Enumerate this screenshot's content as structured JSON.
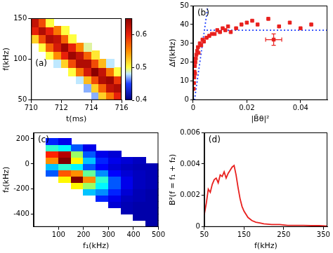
{
  "chart_data": [
    {
      "type": "heatmap",
      "annotation": "(a)",
      "x_label": "t(ms)",
      "y_label": "f(kHz)",
      "x": [
        710.25,
        710.75,
        711.25,
        711.75,
        712.25,
        712.75,
        713.25,
        713.75,
        714.25,
        714.75,
        715.25,
        715.75
      ],
      "y": [
        55,
        65,
        75,
        85,
        95,
        105,
        115,
        125,
        135,
        145
      ],
      "z": [
        [
          null,
          null,
          null,
          null,
          null,
          null,
          null,
          null,
          0.47,
          0.52,
          0.56,
          0.6
        ],
        [
          null,
          null,
          null,
          null,
          null,
          null,
          null,
          0.47,
          0.52,
          0.57,
          0.62,
          0.63
        ],
        [
          null,
          null,
          null,
          null,
          null,
          null,
          0.48,
          0.53,
          0.58,
          0.63,
          0.64,
          0.59
        ],
        [
          null,
          null,
          null,
          null,
          null,
          0.5,
          0.56,
          0.61,
          0.65,
          0.62,
          0.56,
          0.5
        ],
        [
          null,
          null,
          null,
          0.48,
          0.52,
          0.58,
          0.63,
          0.63,
          0.58,
          0.53,
          0.48,
          null
        ],
        [
          null,
          null,
          0.5,
          0.55,
          0.6,
          0.64,
          0.62,
          0.57,
          0.51,
          null,
          null,
          null
        ],
        [
          null,
          0.5,
          0.57,
          0.61,
          0.64,
          0.6,
          0.55,
          0.49,
          null,
          null,
          null,
          null
        ],
        [
          0.52,
          0.58,
          0.63,
          0.62,
          0.57,
          0.5,
          null,
          null,
          null,
          null,
          null,
          null
        ],
        [
          0.6,
          0.63,
          0.6,
          0.56,
          0.5,
          null,
          null,
          null,
          null,
          null,
          null,
          null
        ],
        [
          0.62,
          0.58,
          0.5,
          null,
          null,
          null,
          null,
          null,
          null,
          null,
          null,
          null
        ]
      ],
      "xlim": [
        710,
        716
      ],
      "xticks": [
        710,
        712,
        714,
        716
      ],
      "ylim": [
        50,
        150
      ],
      "yticks": [
        50,
        100,
        150
      ],
      "colorbar_range": [
        0.4,
        0.65
      ],
      "colorbar_ticks": [
        0.4,
        0.5,
        0.6
      ],
      "grid": false
    },
    {
      "type": "scatter",
      "annotation": "(b)",
      "x_label": "|B̃θ|²",
      "y_label": "Δf(kHz)",
      "series": [
        {
          "color": "#e8201e",
          "marker": "square",
          "x": [
            0.0002,
            0.0003,
            0.0004,
            0.0005,
            0.0006,
            0.0007,
            0.0008,
            0.001,
            0.0012,
            0.0015,
            0.0018,
            0.002,
            0.0025,
            0.003,
            0.0035,
            0.004,
            0.005,
            0.006,
            0.007,
            0.008,
            0.009,
            0.01,
            0.011,
            0.012,
            0.013,
            0.014,
            0.016,
            0.018,
            0.02,
            0.022,
            0.024,
            0.028,
            0.032,
            0.036,
            0.04,
            0.044
          ],
          "values": [
            6,
            9,
            12,
            15,
            18,
            14,
            20,
            22,
            24,
            26,
            28,
            25,
            30,
            29,
            32,
            31,
            33,
            34,
            35,
            35,
            37,
            36,
            38,
            37,
            39,
            36,
            38,
            40,
            41,
            42,
            40,
            43,
            39,
            41,
            38,
            40
          ]
        },
        {
          "color": "#e8201e",
          "marker": "square",
          "x": [
            0.03
          ],
          "values": [
            32
          ],
          "x_errors": [
            0.003
          ],
          "y_errors": [
            3
          ]
        },
        {
          "type": "line",
          "color": "#1f3fff",
          "line_style": "dotted",
          "x": [
            0.0005,
            0.0055
          ],
          "values": [
            0,
            50
          ]
        },
        {
          "type": "line",
          "color": "#1f3fff",
          "line_style": "dotted",
          "x": [
            0.005,
            0.05
          ],
          "values": [
            37,
            37
          ]
        }
      ],
      "xlim": [
        0,
        0.05
      ],
      "xticks": [
        0,
        0.02,
        0.04
      ],
      "ylim": [
        0,
        50
      ],
      "yticks": [
        0,
        10,
        20,
        30,
        40,
        50
      ],
      "grid": false
    },
    {
      "type": "heatmap",
      "annotation": "(c)",
      "x_label": "f₁(kHz)",
      "y_label": "f₂(kHz)",
      "x": [
        75,
        125,
        175,
        225,
        275,
        325,
        375,
        425,
        475
      ],
      "y": [
        -475,
        -425,
        -375,
        -325,
        -275,
        -225,
        -175,
        -125,
        -75,
        -25,
        25,
        75,
        125,
        175,
        225
      ],
      "z": [
        [
          null,
          null,
          null,
          null,
          null,
          null,
          null,
          null,
          0.04
        ],
        [
          null,
          null,
          null,
          null,
          null,
          null,
          null,
          0.04,
          0.04
        ],
        [
          null,
          null,
          null,
          null,
          null,
          null,
          0.05,
          0.04,
          0.04
        ],
        [
          null,
          null,
          null,
          null,
          null,
          0.08,
          0.05,
          0.04,
          0.04
        ],
        [
          null,
          null,
          null,
          null,
          0.15,
          0.1,
          0.06,
          0.05,
          0.04
        ],
        [
          null,
          null,
          null,
          0.3,
          0.25,
          0.15,
          0.08,
          0.05,
          0.04
        ],
        [
          null,
          null,
          0.6,
          0.5,
          0.35,
          0.2,
          0.1,
          0.06,
          0.05
        ],
        [
          null,
          0.6,
          0.95,
          0.7,
          0.4,
          0.2,
          0.1,
          0.06,
          0.05
        ],
        [
          0.2,
          0.75,
          0.7,
          0.45,
          0.25,
          0.12,
          0.08,
          0.06,
          0.05
        ],
        [
          0.3,
          0.4,
          0.35,
          0.2,
          0.12,
          0.08,
          0.06,
          0.05,
          0.05
        ],
        [
          0.7,
          0.95,
          0.6,
          0.3,
          0.15,
          0.1,
          0.08,
          0.06,
          null
        ],
        [
          0.8,
          0.9,
          0.5,
          0.2,
          0.1,
          0.08,
          null,
          null,
          null
        ],
        [
          0.4,
          0.35,
          0.2,
          0.1,
          null,
          null,
          null,
          null,
          null
        ],
        [
          0.15,
          0.1,
          null,
          null,
          null,
          null,
          null,
          null,
          null
        ],
        [
          null,
          null,
          null,
          null,
          null,
          null,
          null,
          null,
          null
        ]
      ],
      "xlim": [
        0,
        500
      ],
      "xticks": [
        100,
        200,
        300,
        400,
        500
      ],
      "ylim": [
        -500,
        250
      ],
      "yticks": [
        -400,
        -200,
        0,
        200
      ],
      "grid": false
    },
    {
      "type": "line",
      "annotation": "(d)",
      "x_label": "f(kHz)",
      "y_label": "B²(f = f₁ + f₂)",
      "color": "#e8201e",
      "x": [
        50,
        55,
        60,
        65,
        70,
        75,
        80,
        85,
        90,
        95,
        100,
        105,
        110,
        115,
        120,
        125,
        130,
        135,
        140,
        145,
        150,
        160,
        170,
        180,
        190,
        200,
        220,
        240,
        260,
        280,
        300,
        320,
        340,
        360
      ],
      "values": [
        0.0008,
        0.0015,
        0.0024,
        0.0022,
        0.0027,
        0.003,
        0.0031,
        0.0028,
        0.0033,
        0.0032,
        0.0035,
        0.0031,
        0.0034,
        0.0036,
        0.0038,
        0.0039,
        0.0033,
        0.0025,
        0.0018,
        0.0013,
        0.001,
        0.0006,
        0.0004,
        0.0003,
        0.00025,
        0.0002,
        0.00015,
        0.00015,
        0.0001,
        0.0001,
        0.0001,
        8e-05,
        8e-05,
        5e-05
      ],
      "xlim": [
        50,
        360
      ],
      "xticks": [
        50,
        150,
        250,
        350
      ],
      "ylim": [
        0,
        0.006
      ],
      "yticks": [
        0,
        0.002,
        0.004,
        0.006
      ],
      "grid": false
    }
  ]
}
